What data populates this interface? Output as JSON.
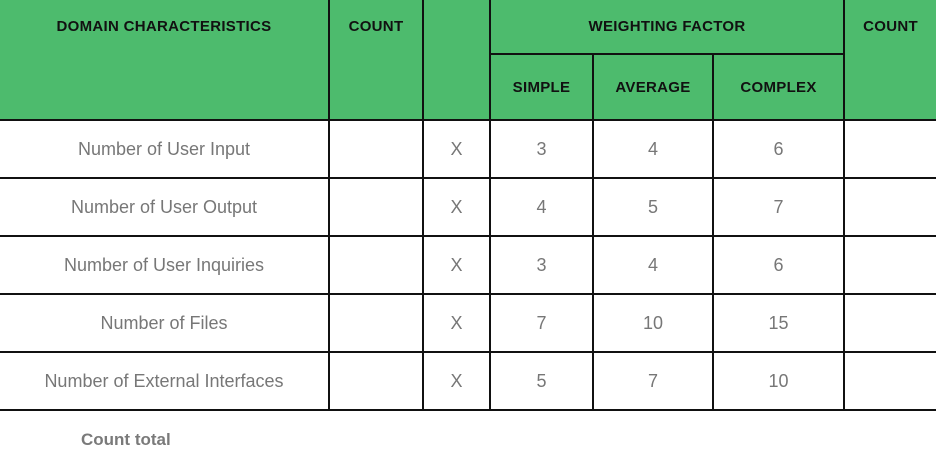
{
  "header": {
    "domain": "DOMAIN CHARACTERISTICS",
    "count": "COUNT",
    "weighting": "WEIGHTING FACTOR",
    "simple": "SIMPLE",
    "average": "AVERAGE",
    "complex": "COMPLEX",
    "count_right": "COUNT"
  },
  "rows": [
    {
      "label": "Number of User Input",
      "x": "X",
      "simple": "3",
      "average": "4",
      "complex": "6"
    },
    {
      "label": "Number of User Output",
      "x": "X",
      "simple": "4",
      "average": "5",
      "complex": "7"
    },
    {
      "label": "Number of User Inquiries",
      "x": "X",
      "simple": "3",
      "average": "4",
      "complex": "6"
    },
    {
      "label": "Number of Files",
      "x": "X",
      "simple": "7",
      "average": "10",
      "complex": "15"
    },
    {
      "label": "Number of External Interfaces",
      "x": "X",
      "simple": "5",
      "average": "7",
      "complex": "10"
    }
  ],
  "footer": {
    "count_total": "Count total"
  },
  "colors": {
    "header_bg": "#4dbb6d",
    "border": "#111111",
    "body_text": "#777777"
  }
}
